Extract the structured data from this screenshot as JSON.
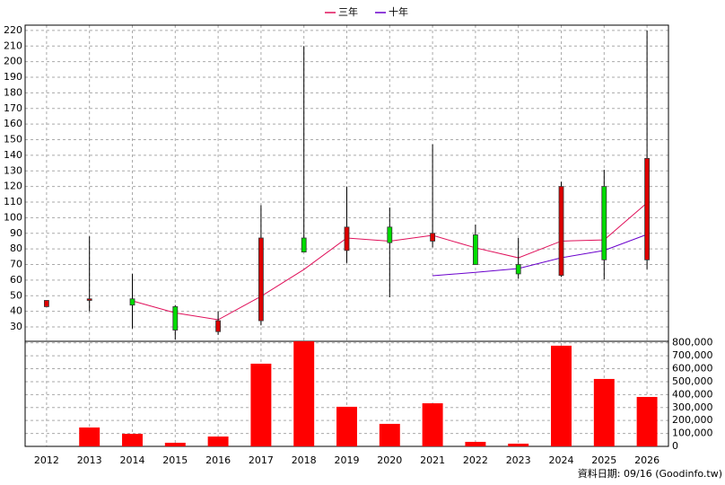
{
  "chart_data": {
    "type": "candlestick",
    "categories": [
      "2012",
      "2013",
      "2014",
      "2015",
      "2016",
      "2017",
      "2018",
      "2019",
      "2020",
      "2021",
      "2022",
      "2023",
      "2024",
      "2025",
      "2026"
    ],
    "open": [
      43,
      47,
      48,
      43,
      27,
      34,
      87,
      79,
      94,
      85,
      89,
      70,
      63,
      120,
      73
    ],
    "high": [
      47,
      88,
      64,
      44,
      40,
      108,
      210,
      120,
      106.5,
      147,
      95.6,
      87,
      123,
      130.7,
      220
    ],
    "low": [
      43,
      40,
      29,
      22,
      25,
      31,
      78,
      71,
      49,
      81,
      70,
      61,
      62,
      60.5,
      67
    ],
    "close": [
      47,
      48,
      44,
      28,
      34,
      87,
      78,
      94,
      84,
      90,
      70,
      64,
      120,
      73,
      138
    ],
    "up_color": "#dd0000",
    "down_color": "#00dd00",
    "series": [
      {
        "name": "三年",
        "color": "#e0105a",
        "values": [
          null,
          null,
          46.7,
          39,
          34.6,
          49.6,
          66.8,
          87,
          85,
          88.7,
          80.7,
          74.3,
          85,
          85.8,
          109.5
        ]
      },
      {
        "name": "十年",
        "color": "#6a00cc",
        "values": [
          null,
          null,
          null,
          null,
          null,
          null,
          null,
          null,
          null,
          62.8,
          65,
          67.4,
          74.3,
          79,
          89.3
        ]
      }
    ],
    "volume": {
      "color": "#ff0000",
      "axis": "y2",
      "values": [
        0,
        146000,
        97000,
        28000,
        76000,
        639000,
        812000,
        306000,
        174000,
        333000,
        35000,
        21000,
        778000,
        521000,
        382000
      ]
    },
    "ylim": [
      20.8,
      223.4
    ],
    "yticks": [
      30,
      40,
      50,
      60,
      70,
      80,
      90,
      100,
      110,
      120,
      130,
      140,
      150,
      160,
      170,
      180,
      190,
      200,
      210,
      220
    ],
    "y2lim": [
      0,
      812000
    ],
    "y2ticks": [
      0,
      {
        "value": 100000,
        "label": "100,000"
      },
      {
        "value": 200000,
        "label": "200,000"
      },
      {
        "value": 300000,
        "label": "300,000"
      },
      {
        "value": 400000,
        "label": "400,000"
      },
      {
        "value": 500000,
        "label": "500,000"
      },
      {
        "value": 600000,
        "label": "600,000"
      },
      {
        "value": 700000,
        "label": "700,000"
      },
      {
        "value": 800000,
        "label": "800,000"
      }
    ],
    "grid": true,
    "legend": "top",
    "footer": "資料日期: 09/16 (Goodinfo.tw)"
  }
}
